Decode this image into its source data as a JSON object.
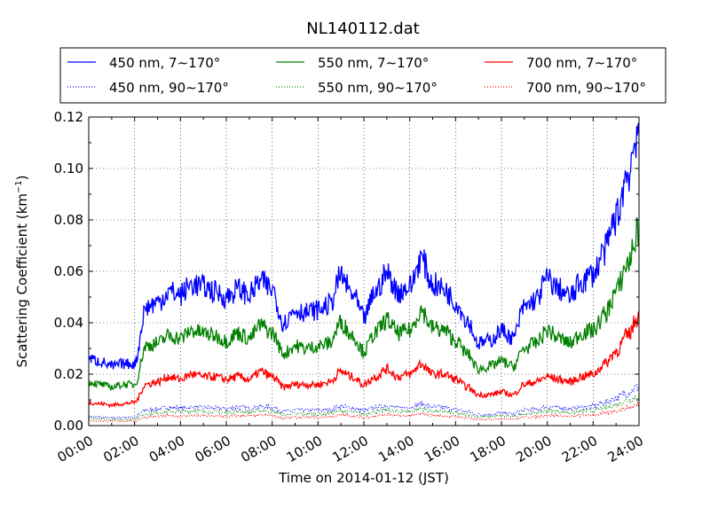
{
  "chart_data": {
    "type": "line",
    "title": "NL140112.dat",
    "xlabel": "Time on 2014-01-12 (JST)",
    "ylabel": "Scattering Coefficient (km",
    "ylabel_sup": "−1",
    "ylabel_end": ")",
    "xlim": [
      0,
      24
    ],
    "ylim": [
      0,
      0.12
    ],
    "grid": true,
    "legend_position": "top, outside plot, 3 columns",
    "x_ticks": [
      {
        "value": 0,
        "label": "00:00"
      },
      {
        "value": 2,
        "label": "02:00"
      },
      {
        "value": 4,
        "label": "04:00"
      },
      {
        "value": 6,
        "label": "06:00"
      },
      {
        "value": 8,
        "label": "08:00"
      },
      {
        "value": 10,
        "label": "10:00"
      },
      {
        "value": 12,
        "label": "12:00"
      },
      {
        "value": 14,
        "label": "14:00"
      },
      {
        "value": 16,
        "label": "16:00"
      },
      {
        "value": 18,
        "label": "18:00"
      },
      {
        "value": 20,
        "label": "20:00"
      },
      {
        "value": 22,
        "label": "22:00"
      },
      {
        "value": 24,
        "label": "24:00"
      }
    ],
    "y_ticks": [
      {
        "value": 0,
        "label": "0.00"
      },
      {
        "value": 0.02,
        "label": "0.02"
      },
      {
        "value": 0.04,
        "label": "0.04"
      },
      {
        "value": 0.06,
        "label": "0.06"
      },
      {
        "value": 0.08,
        "label": "0.08"
      },
      {
        "value": 0.1,
        "label": "0.10"
      },
      {
        "value": 0.12,
        "label": "0.12"
      }
    ],
    "x_hours": [
      0,
      0.5,
      1,
      1.5,
      2,
      2.5,
      3,
      3.5,
      4,
      4.5,
      5,
      5.5,
      6,
      6.5,
      7,
      7.5,
      8,
      8.5,
      9,
      9.5,
      10,
      10.5,
      11,
      11.5,
      12,
      12.5,
      13,
      13.5,
      14,
      14.5,
      15,
      15.5,
      16,
      16.5,
      17,
      17.5,
      18,
      18.5,
      19,
      19.5,
      20,
      20.5,
      21,
      21.5,
      22,
      22.5,
      23,
      23.5,
      24
    ],
    "series": [
      {
        "name": "450 nm, 7∼170°",
        "color": "#0000ff",
        "style": "solid",
        "values": [
          0.026,
          0.025,
          0.023,
          0.024,
          0.024,
          0.046,
          0.048,
          0.052,
          0.051,
          0.055,
          0.054,
          0.052,
          0.05,
          0.053,
          0.051,
          0.056,
          0.053,
          0.04,
          0.045,
          0.044,
          0.045,
          0.047,
          0.058,
          0.051,
          0.042,
          0.052,
          0.059,
          0.052,
          0.054,
          0.065,
          0.055,
          0.053,
          0.048,
          0.041,
          0.032,
          0.033,
          0.037,
          0.034,
          0.046,
          0.049,
          0.057,
          0.053,
          0.05,
          0.056,
          0.059,
          0.068,
          0.081,
          0.098,
          0.117
        ]
      },
      {
        "name": "550 nm, 7∼170°",
        "color": "#008000",
        "style": "solid",
        "values": [
          0.017,
          0.016,
          0.015,
          0.016,
          0.016,
          0.031,
          0.032,
          0.035,
          0.034,
          0.037,
          0.036,
          0.035,
          0.033,
          0.036,
          0.034,
          0.039,
          0.036,
          0.028,
          0.031,
          0.03,
          0.031,
          0.032,
          0.04,
          0.035,
          0.029,
          0.036,
          0.041,
          0.036,
          0.037,
          0.045,
          0.038,
          0.037,
          0.033,
          0.028,
          0.022,
          0.023,
          0.025,
          0.023,
          0.03,
          0.032,
          0.037,
          0.034,
          0.032,
          0.036,
          0.037,
          0.043,
          0.052,
          0.063,
          0.076
        ]
      },
      {
        "name": "700 nm, 7∼170°",
        "color": "#ff0000",
        "style": "solid",
        "values": [
          0.009,
          0.0085,
          0.008,
          0.0085,
          0.009,
          0.016,
          0.017,
          0.019,
          0.018,
          0.02,
          0.019,
          0.019,
          0.018,
          0.019,
          0.018,
          0.021,
          0.019,
          0.015,
          0.016,
          0.016,
          0.016,
          0.017,
          0.021,
          0.019,
          0.016,
          0.019,
          0.022,
          0.019,
          0.02,
          0.024,
          0.02,
          0.02,
          0.018,
          0.015,
          0.012,
          0.012,
          0.013,
          0.012,
          0.016,
          0.017,
          0.019,
          0.018,
          0.017,
          0.019,
          0.02,
          0.024,
          0.029,
          0.035,
          0.043
        ]
      },
      {
        "name": "450 nm, 90∼170°",
        "color": "#0000ff",
        "style": "dotted",
        "values": [
          0.0035,
          0.0033,
          0.003,
          0.0032,
          0.0034,
          0.006,
          0.0065,
          0.007,
          0.0068,
          0.0072,
          0.007,
          0.0068,
          0.0066,
          0.0072,
          0.0068,
          0.0074,
          0.007,
          0.0056,
          0.006,
          0.006,
          0.006,
          0.0062,
          0.0075,
          0.0068,
          0.0058,
          0.007,
          0.0078,
          0.0069,
          0.0071,
          0.0085,
          0.0072,
          0.007,
          0.0063,
          0.0054,
          0.0042,
          0.0043,
          0.0049,
          0.0045,
          0.006,
          0.0063,
          0.0074,
          0.007,
          0.0065,
          0.0072,
          0.0076,
          0.009,
          0.0106,
          0.0128,
          0.0152
        ]
      },
      {
        "name": "550 nm, 90∼170°",
        "color": "#008000",
        "style": "dotted",
        "values": [
          0.0027,
          0.0025,
          0.0023,
          0.0024,
          0.0026,
          0.0046,
          0.005,
          0.0054,
          0.0052,
          0.0056,
          0.0054,
          0.0053,
          0.0051,
          0.0055,
          0.0052,
          0.0058,
          0.0054,
          0.0043,
          0.0046,
          0.0046,
          0.0046,
          0.0048,
          0.0058,
          0.0052,
          0.0045,
          0.0054,
          0.006,
          0.0053,
          0.0055,
          0.0066,
          0.0056,
          0.0054,
          0.0049,
          0.0042,
          0.0033,
          0.0034,
          0.0038,
          0.0035,
          0.0046,
          0.0049,
          0.0057,
          0.0054,
          0.005,
          0.0056,
          0.0058,
          0.0068,
          0.0081,
          0.0098,
          0.0115
        ]
      },
      {
        "name": "700 nm, 90∼170°",
        "color": "#ff0000",
        "style": "dotted",
        "values": [
          0.0019,
          0.0018,
          0.0016,
          0.0017,
          0.0018,
          0.0033,
          0.0035,
          0.0038,
          0.0037,
          0.0039,
          0.0038,
          0.0037,
          0.0036,
          0.0039,
          0.0037,
          0.004,
          0.0038,
          0.003,
          0.0032,
          0.0032,
          0.0032,
          0.0034,
          0.0041,
          0.0037,
          0.0032,
          0.0038,
          0.0042,
          0.0037,
          0.0039,
          0.0046,
          0.0039,
          0.0038,
          0.0034,
          0.003,
          0.0023,
          0.0024,
          0.0027,
          0.0025,
          0.0033,
          0.0034,
          0.004,
          0.0038,
          0.0035,
          0.0039,
          0.0041,
          0.0048,
          0.0057,
          0.0069,
          0.0081
        ]
      }
    ],
    "legend_order": [
      0,
      1,
      2,
      3,
      4,
      5
    ]
  }
}
